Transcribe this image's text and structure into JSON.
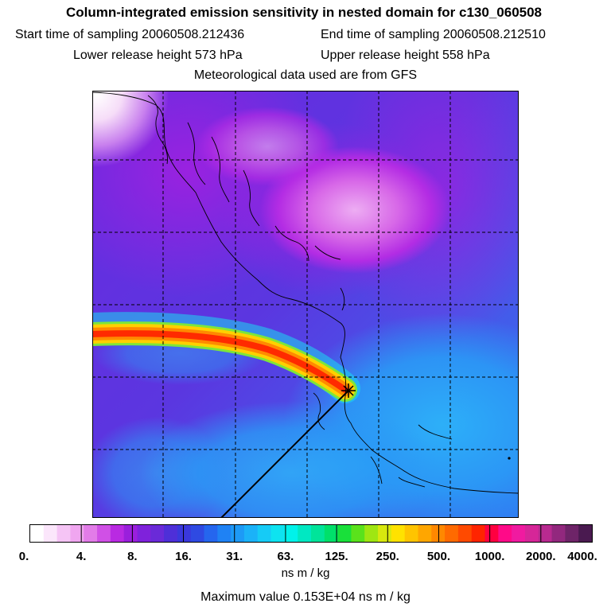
{
  "header": {
    "title": "Column-integrated emission sensitivity in nested domain for c130_060508",
    "start_label": "Start time of sampling 20060508.212436",
    "end_label": "End time of sampling 20060508.212510",
    "lower_label": "Lower release height  573 hPa",
    "upper_label": "Upper release height  558 hPa",
    "met_label": "Meteorological data used are from GFS"
  },
  "chart_data": {
    "type": "heatmap",
    "title": "Column-integrated emission sensitivity in nested domain for c130_060508",
    "colorbar": {
      "tick_labels": [
        "0.",
        "4.",
        "8.",
        "16.",
        "31.",
        "63.",
        "125.",
        "250.",
        "500.",
        "1000.",
        "2000.",
        "4000."
      ],
      "units": "ns m / kg",
      "colors": [
        "#ffffff",
        "#fbe6fb",
        "#f5c4f5",
        "#f0a6f0",
        "#e27ce8",
        "#d050e6",
        "#b92ae2",
        "#9a1fdc",
        "#7f22db",
        "#6a2ad8",
        "#4e2fd8",
        "#3a38dc",
        "#2f4ae2",
        "#2566ee",
        "#1f82f4",
        "#1d9af6",
        "#1bb2f8",
        "#16cbf6",
        "#0ee3f0",
        "#00f2ea",
        "#00e8c2",
        "#00e49a",
        "#00e06a",
        "#19e03a",
        "#5ae21c",
        "#9fe612",
        "#d8e80e",
        "#ffe200",
        "#ffc400",
        "#ffa600",
        "#ff8800",
        "#ff6a00",
        "#ff4a00",
        "#ff2400",
        "#ff0040",
        "#ff0a88",
        "#f01aa0",
        "#d62698",
        "#b82a90",
        "#92287e",
        "#6e2468",
        "#4a1a50"
      ]
    },
    "plume": {
      "max_value": "0.153E+04",
      "units": "ns m / kg"
    }
  },
  "footer": {
    "units_label": "ns m / kg",
    "max_label": "Maximum value  0.153E+04 ns m / kg"
  }
}
